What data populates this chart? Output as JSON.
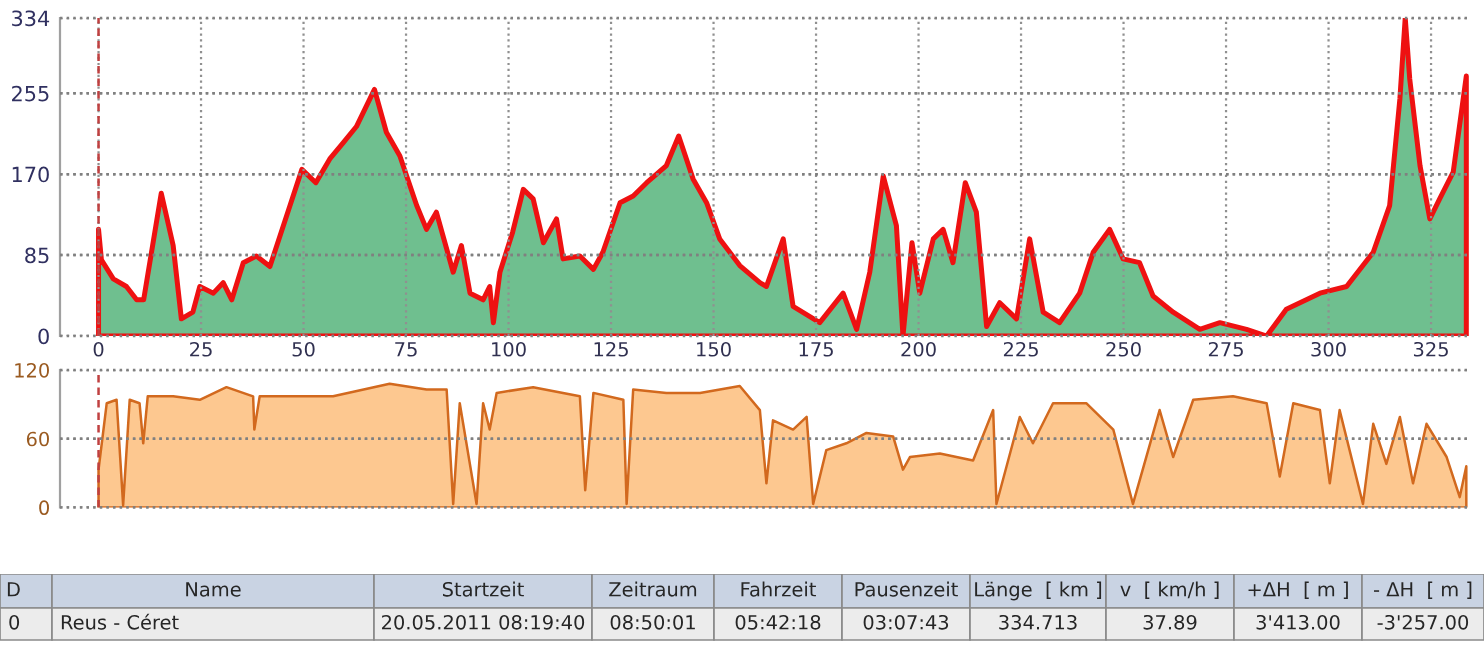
{
  "chart_data": [
    {
      "type": "area",
      "xlim": [
        -9.4,
        334.5
      ],
      "ylim": [
        0,
        334
      ],
      "xticks": [
        0,
        25,
        50,
        75,
        100,
        125,
        150,
        175,
        200,
        225,
        250,
        275,
        300,
        325
      ],
      "yticks": [
        0,
        85,
        170,
        255,
        334
      ],
      "grid": true,
      "ref_lines": [
        {
          "axis": "x",
          "value": 0,
          "color": "#c04040",
          "line_style": "dashed"
        }
      ],
      "series": [
        {
          "color": "#ee1111",
          "x": [
            0,
            0.7,
            3.6,
            6.8,
            9.3,
            11,
            15.3,
            18.2,
            20.2,
            23,
            24.7,
            28,
            30.4,
            32.5,
            35.3,
            38.5,
            41.8,
            46.7,
            49.6,
            53,
            56.4,
            59.7,
            62.9,
            67.3,
            70.2,
            73.5,
            77.6,
            80,
            82.4,
            86.5,
            88.5,
            90.6,
            93.8,
            95.4,
            96.3,
            97.9,
            101,
            103.6,
            106,
            108.5,
            111.7,
            113.3,
            117.4,
            120.7,
            123,
            127.2,
            130.4,
            133.7,
            138.5,
            141.5,
            145,
            148.3,
            151.5,
            156.4,
            161.3,
            162.9,
            167,
            169.4,
            175.9,
            181.6,
            184.9,
            188.1,
            191.4,
            194.6,
            196.2,
            198.4,
            200.3,
            203.6,
            206,
            208.4,
            211.4,
            214.1,
            216.6,
            219.8,
            223.9,
            227.1,
            230.4,
            234.4,
            239.3,
            242.6,
            246.6,
            249.9,
            253.9,
            257.2,
            262.1,
            268.6,
            273.5,
            280,
            284.9,
            289.7,
            297.9,
            304.4,
            310.9,
            314.9,
            317.4,
            318.7,
            319.8,
            322.3,
            324.7,
            327.1,
            330.4,
            333.6
          ],
          "values": [
            112,
            80,
            60,
            52,
            38,
            38,
            150,
            95,
            18,
            25,
            52,
            45,
            56,
            38,
            77,
            84,
            73,
            137,
            175,
            161,
            186,
            203,
            220,
            259,
            214,
            189,
            137,
            112,
            130,
            67,
            95,
            45,
            38,
            52,
            14,
            67,
            109,
            154,
            144,
            98,
            123,
            81,
            84,
            70,
            88,
            140,
            147,
            161,
            179,
            210,
            165,
            140,
            102,
            74,
            56,
            52,
            102,
            31,
            14,
            45,
            7,
            67,
            168,
            116,
            0,
            98,
            45,
            102,
            112,
            77,
            161,
            130,
            10,
            35,
            18,
            102,
            25,
            14,
            45,
            88,
            112,
            81,
            77,
            42,
            25,
            7,
            14,
            7,
            0,
            28,
            45,
            52,
            88,
            137,
            249,
            334,
            270,
            179,
            123,
            144,
            172,
            273
          ]
        }
      ]
    },
    {
      "type": "area",
      "xlim": [
        -9.4,
        334.5
      ],
      "ylim": [
        0,
        120
      ],
      "yticks": [
        0,
        60,
        120
      ],
      "grid": "y",
      "tick_labels": "y",
      "ref_lines": [
        {
          "axis": "x",
          "value": 0,
          "color": "#c04040",
          "line_style": "dashed"
        }
      ],
      "series": [
        {
          "color": "#d2691e",
          "x": [
            0,
            2,
            4.4,
            6,
            7.6,
            10,
            10.9,
            12,
            18.2,
            24.7,
            31.2,
            37.7,
            38,
            39.3,
            57.2,
            71,
            80,
            84.9,
            86.5,
            88.1,
            92.2,
            93.8,
            95.4,
            97.1,
            106,
            117.4,
            118.7,
            120.7,
            128,
            128.8,
            130.4,
            138.5,
            146.7,
            156.4,
            161.3,
            162.9,
            164.5,
            169.4,
            172.7,
            174.3,
            177.5,
            182.4,
            187.3,
            193.8,
            196.2,
            197.9,
            205.2,
            213.3,
            218.2,
            219,
            224.7,
            227.9,
            232.8,
            240.9,
            247.5,
            252.3,
            258.8,
            262.1,
            267,
            276.7,
            284.9,
            288.1,
            291.4,
            297.9,
            300.3,
            302.7,
            308.4,
            310.9,
            314.1,
            317.4,
            320.6,
            323.9,
            328.8,
            332,
            333.6
          ],
          "values": [
            33,
            91,
            94,
            2,
            94,
            91,
            56,
            97,
            97,
            94,
            105,
            97,
            68,
            97,
            97,
            108,
            103,
            103,
            3,
            91,
            3,
            91,
            68,
            100,
            105,
            97,
            15,
            100,
            94,
            3,
            103,
            100,
            100,
            106,
            85,
            21,
            76,
            68,
            79,
            3,
            50,
            56,
            65,
            62,
            33,
            44,
            47,
            41,
            85,
            3,
            79,
            56,
            91,
            91,
            68,
            3,
            85,
            44,
            94,
            97,
            91,
            27,
            91,
            85,
            21,
            85,
            3,
            73,
            38,
            79,
            21,
            73,
            44,
            9,
            36
          ]
        }
      ]
    },
    {
      "type": "other",
      "annotations": [
        "D",
        "Name",
        "Startzeit",
        "Zeitraum",
        "Fahrzeit",
        "Pausenzeit",
        "Länge  [ km ]",
        "v  [ km/h ]",
        "+ΔH  [ m ]",
        "- ΔH  [ m ]",
        "0",
        "Reus - Céret",
        "20.05.2011 08:19:40",
        "08:50:01",
        "05:42:18",
        "03:07:43",
        "334.713",
        "37.89",
        "3'413.00",
        "-3'257.00"
      ]
    }
  ]
}
